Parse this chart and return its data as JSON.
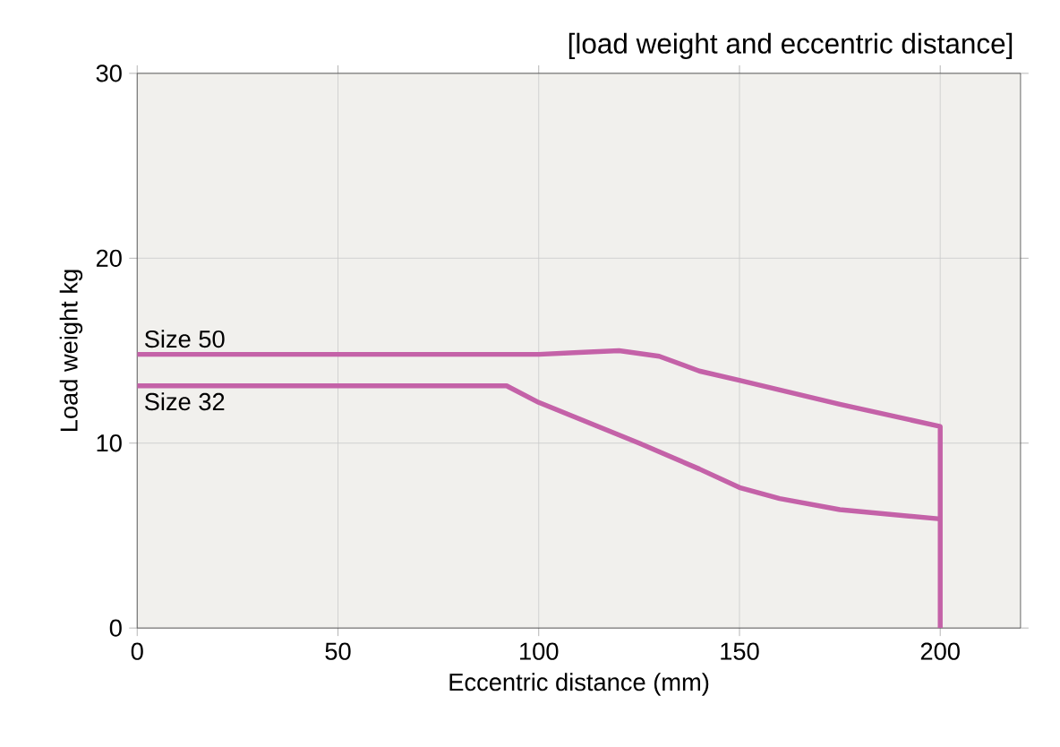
{
  "chart_data": {
    "type": "line",
    "title": "[load weight and eccentric distance]",
    "xlabel": "Eccentric distance (mm)",
    "ylabel": "Load weight kg",
    "series": [
      {
        "name": "Size 50",
        "color": "#c462a8",
        "x": [
          0,
          50,
          100,
          110,
          120,
          130,
          140,
          150,
          175,
          200,
          200
        ],
        "values": [
          14.8,
          14.8,
          14.8,
          14.9,
          15.0,
          14.7,
          13.9,
          13.4,
          12.1,
          10.9,
          0
        ]
      },
      {
        "name": "Size 32",
        "color": "#c462a8",
        "x": [
          0,
          50,
          92,
          100,
          125,
          140,
          150,
          160,
          175,
          200
        ],
        "values": [
          13.1,
          13.1,
          13.1,
          12.2,
          10.0,
          8.6,
          7.6,
          7.0,
          6.4,
          5.9
        ]
      }
    ],
    "xlim": [
      0,
      220
    ],
    "ylim": [
      0,
      30
    ],
    "xticks": [
      0,
      50,
      100,
      150,
      200
    ],
    "yticks": [
      0,
      10,
      20,
      30
    ],
    "grid": true
  }
}
